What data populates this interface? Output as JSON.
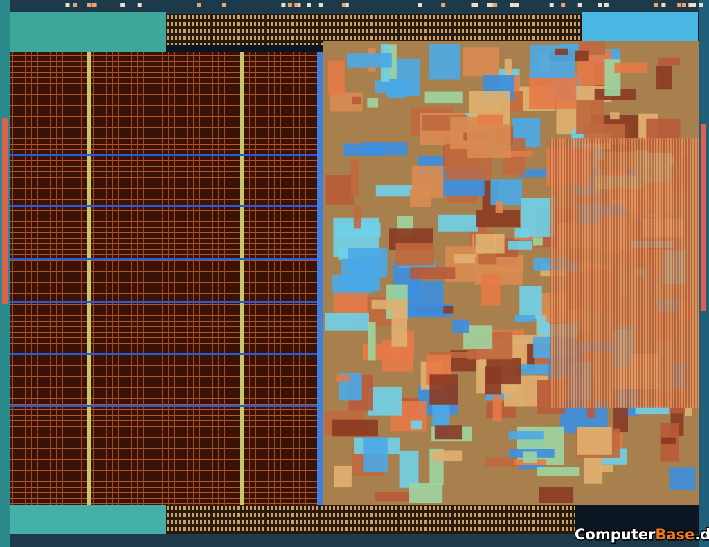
{
  "watermark": {
    "prefix": "Computer",
    "highlight": "Base",
    "suffix": ".de"
  }
}
